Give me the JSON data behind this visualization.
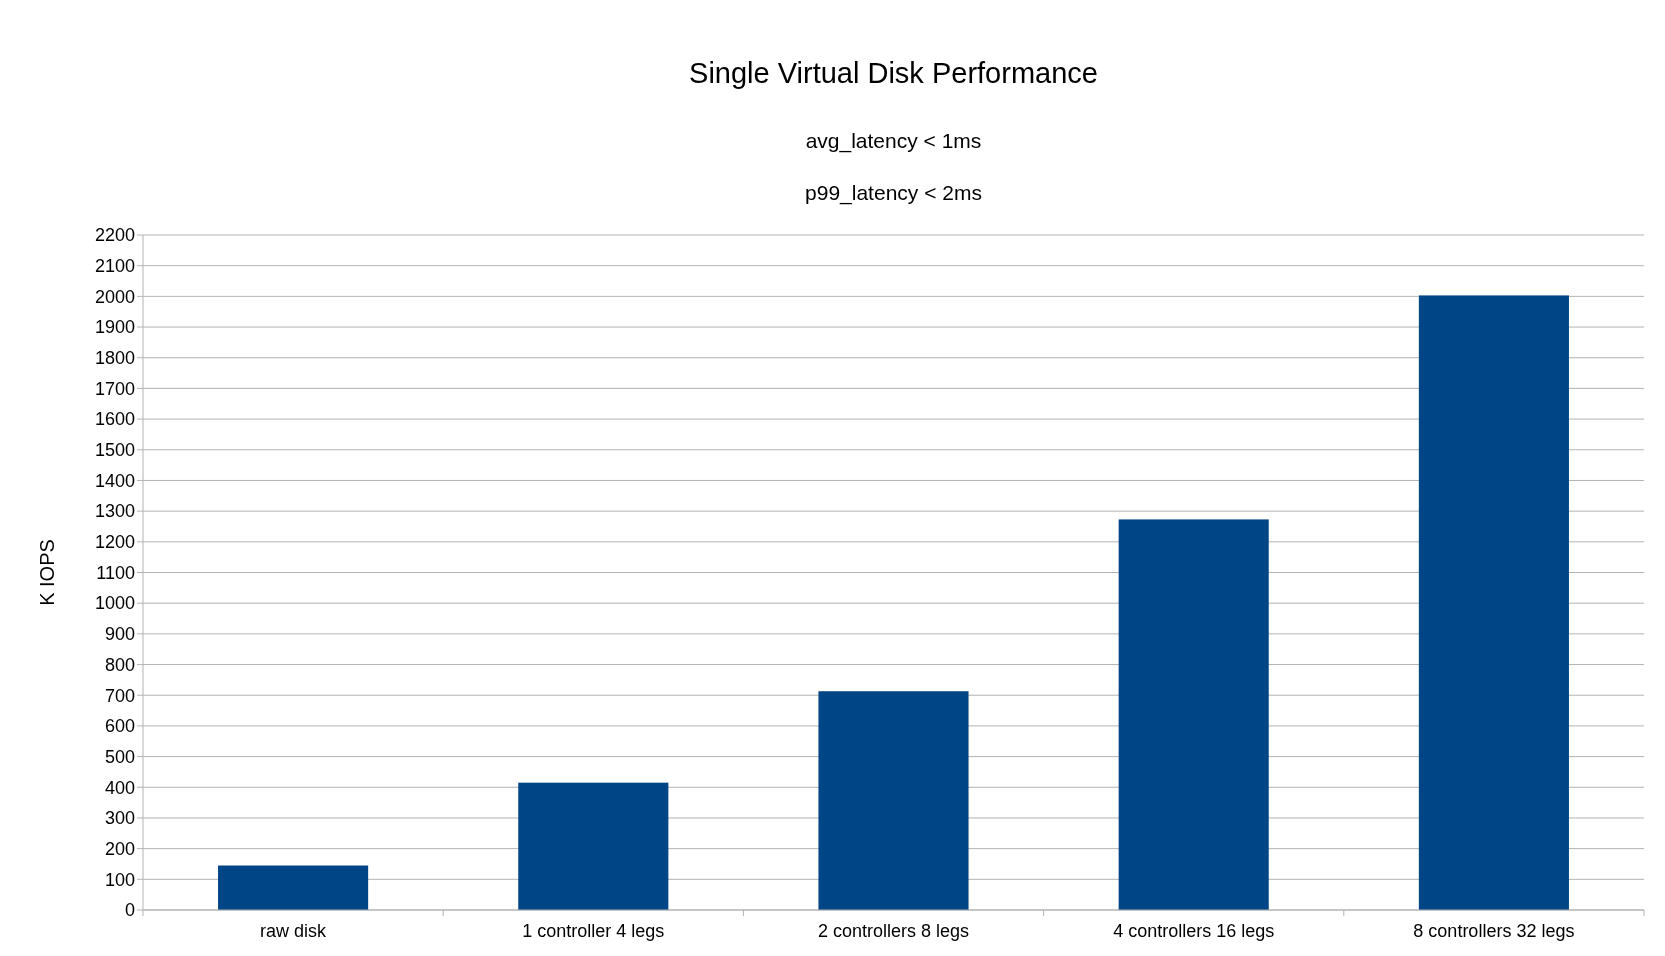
{
  "chart_data": {
    "type": "bar",
    "title": "Single Virtual Disk Performance",
    "subtitle": "avg_latency < 1ms\np99_latency < 2ms",
    "ylabel": "K IOPS",
    "categories": [
      "raw disk",
      "1 controller 4 legs",
      "2 controllers 8 legs",
      "4 controllers 16 legs",
      "8 controllers 32 legs"
    ],
    "values": [
      145,
      415,
      713,
      1273,
      2003
    ],
    "color": "#004586",
    "ylim": [
      0,
      2200
    ],
    "yticks": [
      0,
      100,
      200,
      300,
      400,
      500,
      600,
      700,
      800,
      900,
      1000,
      1100,
      1200,
      1300,
      1400,
      1500,
      1600,
      1700,
      1800,
      1900,
      2000,
      2100,
      2200
    ],
    "grid": "y"
  }
}
